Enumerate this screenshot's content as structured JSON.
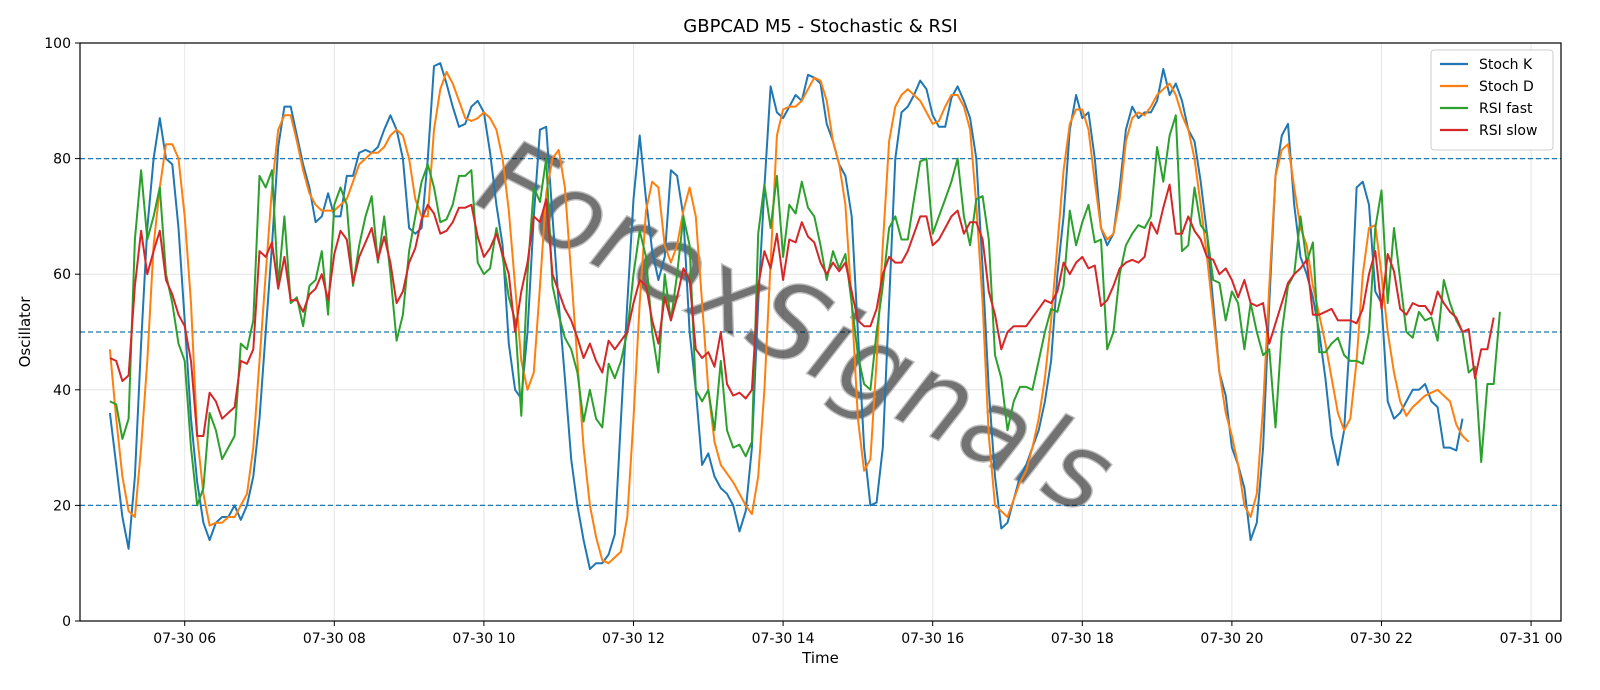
{
  "chart_data": {
    "type": "line",
    "title": "GBPCAD M5 - Stochastic & RSI",
    "xlabel": "Time",
    "ylabel": "Oscillator",
    "ylim": [
      0,
      100
    ],
    "yticks": [
      0,
      20,
      40,
      60,
      80,
      100
    ],
    "xlim": [
      "07-30 04:36",
      "07-31 00:24"
    ],
    "xticks": [
      "07-30 06",
      "07-30 08",
      "07-30 10",
      "07-30 12",
      "07-30 14",
      "07-30 16",
      "07-30 18",
      "07-30 20",
      "07-30 22",
      "07-31 00"
    ],
    "grid": true,
    "legend_position": "top-right",
    "reference_lines": [
      20,
      50,
      80
    ],
    "watermark": "ForexSignals",
    "x_start": "07-30 05:00",
    "x_step_minutes": 5,
    "series": [
      {
        "name": "Stoch K",
        "color": "#1f77b4",
        "values": [
          36,
          27,
          18,
          12.5,
          25,
          48,
          68,
          80,
          87,
          80,
          79,
          68,
          52,
          35,
          24,
          17,
          14,
          17,
          18,
          18,
          20,
          17.5,
          20,
          25,
          35,
          50,
          65,
          82,
          89,
          89,
          84,
          79,
          75,
          69,
          70,
          74,
          70,
          70,
          77,
          77,
          81,
          81.5,
          81,
          82,
          85,
          87.5,
          85,
          80,
          68,
          67,
          68,
          80,
          96,
          96.5,
          93,
          89,
          85.5,
          86,
          89,
          90,
          88,
          81,
          72,
          65,
          48,
          40,
          38.5,
          50,
          70,
          85,
          85.5,
          70,
          55,
          42,
          28,
          20,
          14,
          9,
          10,
          10,
          11.5,
          15,
          35,
          55,
          73,
          84,
          73,
          64,
          59,
          63,
          78,
          77,
          70,
          50,
          40,
          27,
          29,
          25,
          23,
          22,
          20,
          15.5,
          19,
          30,
          55,
          75,
          92.5,
          88,
          87,
          89,
          91,
          90,
          94.5,
          94,
          93,
          86,
          83,
          79,
          77,
          70,
          50,
          30,
          20,
          20.5,
          30,
          55,
          80,
          88,
          89,
          91,
          93.5,
          92,
          87.5,
          85.5,
          85.5,
          90.5,
          92.5,
          90,
          87,
          80,
          61,
          40,
          25,
          16,
          17,
          21,
          25,
          27,
          30,
          33,
          38,
          45,
          60,
          70,
          85,
          91,
          87,
          88,
          80,
          68,
          65,
          67,
          75,
          85,
          89,
          87,
          88,
          88,
          90,
          95.5,
          91,
          93,
          90,
          85,
          83,
          76,
          67,
          55,
          43,
          39,
          30,
          27,
          23,
          14,
          17,
          30,
          55,
          77,
          84,
          86,
          72,
          63,
          60,
          56,
          50,
          42,
          32,
          27,
          33,
          50,
          75,
          76,
          72,
          57,
          55,
          38,
          35,
          36,
          38,
          40,
          40,
          41,
          38,
          37,
          30,
          30,
          29.5,
          35
        ]
      },
      {
        "name": "Stoch D",
        "color": "#ff7f0e",
        "values": [
          47,
          35,
          25,
          19,
          18,
          30,
          45,
          65,
          75,
          82.5,
          82.5,
          80,
          70,
          55,
          32,
          22,
          16.5,
          17,
          17,
          18,
          18,
          20,
          22,
          30,
          45,
          60,
          75,
          85,
          87.5,
          87.5,
          83,
          78,
          74,
          72,
          71,
          71,
          71,
          72,
          73,
          76,
          79,
          80,
          81,
          81,
          82,
          84,
          85,
          84,
          80,
          73,
          70,
          70,
          85,
          92,
          95,
          93,
          90,
          87,
          86.5,
          87,
          88,
          87,
          85,
          80,
          71,
          58,
          45,
          40,
          43,
          58,
          74,
          80,
          81.5,
          75,
          60,
          45,
          30,
          20,
          14.5,
          10.5,
          10,
          11,
          12,
          18,
          35,
          55,
          71,
          76,
          75,
          65,
          62,
          65,
          71,
          75,
          70,
          55,
          40,
          31,
          27,
          25.5,
          24,
          22,
          20,
          18.5,
          25,
          40,
          62,
          84,
          88.5,
          89,
          89,
          90,
          92,
          94,
          93.5,
          90,
          83,
          79,
          72,
          55,
          35,
          26,
          28,
          45,
          65,
          83,
          89,
          91,
          92,
          91,
          90,
          88,
          86,
          86.5,
          89,
          91,
          91,
          89,
          85,
          72,
          55,
          32,
          20,
          19,
          18,
          21,
          24,
          26,
          30,
          35,
          42,
          52,
          65,
          78,
          86,
          88.5,
          88.5,
          85,
          76,
          68,
          66,
          67,
          73,
          83,
          87,
          88,
          87.5,
          89,
          91,
          92,
          93,
          91,
          87.5,
          85,
          80,
          72,
          63,
          53,
          43,
          36,
          32,
          27,
          20,
          18,
          22,
          37,
          58,
          77,
          81.5,
          82.5,
          75,
          68,
          65,
          58,
          53,
          48,
          42,
          36,
          33,
          35,
          45,
          60,
          68,
          68.5,
          60,
          50,
          43,
          38,
          35.5,
          37,
          38,
          39,
          39.5,
          40,
          39,
          38,
          34,
          32,
          31
        ]
      },
      {
        "name": "RSI fast",
        "color": "#2ca02c",
        "values": [
          38,
          37.5,
          31.5,
          35,
          66,
          78,
          66,
          70,
          75,
          60,
          55,
          48,
          45,
          30,
          20,
          23,
          36,
          33,
          28,
          30,
          32,
          48,
          47,
          52,
          77,
          75,
          78,
          58,
          70,
          55,
          56,
          51,
          58,
          59,
          64,
          53,
          72,
          75,
          72,
          58,
          65,
          70,
          73.5,
          62,
          70,
          60,
          48.5,
          53,
          64,
          70,
          76,
          79,
          75,
          69,
          69.5,
          72,
          77,
          77,
          78,
          62,
          60,
          61,
          68,
          63,
          56,
          52,
          35.5,
          60,
          75,
          72.5,
          80,
          58,
          53,
          49,
          47,
          43,
          34.5,
          40,
          35,
          33.5,
          44.5,
          42,
          45,
          50,
          60,
          67.5,
          63,
          50,
          43,
          60,
          52,
          60,
          70,
          65,
          40,
          38,
          40,
          33,
          45,
          33,
          30,
          30.5,
          28.5,
          31,
          67,
          75.5,
          68,
          77,
          63,
          72,
          70.5,
          76,
          71.5,
          70,
          65,
          59,
          64,
          61,
          63.5,
          55,
          46,
          41,
          40,
          50,
          58,
          68,
          70,
          66,
          66,
          73,
          79.5,
          80,
          67,
          70,
          73,
          76,
          80,
          70,
          65,
          73,
          73.5,
          66,
          46,
          42,
          33,
          38,
          40.5,
          40.5,
          40,
          45,
          50,
          54,
          53.5,
          58,
          71,
          65,
          69,
          72,
          65.5,
          66,
          47,
          50,
          60,
          65,
          67,
          68.5,
          68,
          70,
          82,
          76,
          84,
          87.5,
          64,
          65,
          75,
          68.5,
          67,
          59,
          58.5,
          52,
          57,
          55,
          47,
          55,
          50,
          46,
          47,
          33.5,
          50,
          58,
          60,
          70,
          62,
          65.5,
          46.5,
          46.5,
          48,
          49,
          46,
          45,
          45,
          44.5,
          50,
          68,
          74.5,
          55,
          68,
          59,
          50,
          49,
          53.5,
          52,
          52.5,
          48.5,
          59,
          55,
          52,
          50,
          43,
          44,
          27.5,
          41,
          41,
          53.5
        ]
      },
      {
        "name": "RSI slow",
        "color": "#d62728",
        "values": [
          45.5,
          45,
          41.5,
          42.5,
          58,
          67.5,
          60,
          64,
          67.5,
          59,
          56.5,
          53,
          51,
          45,
          32,
          32,
          39.5,
          38,
          35,
          36,
          37,
          45,
          44.5,
          47,
          64,
          63,
          65.5,
          57.5,
          63,
          55.5,
          55.5,
          53.5,
          56.5,
          57.5,
          60,
          55.5,
          63.5,
          67.5,
          66,
          58.5,
          63,
          65.5,
          68,
          62.5,
          66.5,
          62,
          55,
          57,
          62,
          64.5,
          69.5,
          72,
          70.5,
          67,
          67.5,
          69,
          71.5,
          71.5,
          72,
          66.5,
          63,
          64.5,
          67,
          63.5,
          60,
          50,
          57,
          62,
          70,
          69,
          73,
          60,
          57,
          54,
          52,
          49,
          45.5,
          48,
          45,
          43,
          48.5,
          47,
          48.5,
          50,
          55,
          59,
          58,
          52,
          48,
          56,
          52,
          56,
          61,
          59,
          47,
          45.5,
          46.5,
          44,
          50,
          41,
          39,
          39.5,
          38.5,
          40,
          58,
          64,
          61,
          67,
          59,
          66,
          65.5,
          69,
          66.5,
          65.5,
          62,
          60,
          62,
          60.5,
          62,
          57,
          52,
          51,
          51,
          54,
          60,
          63,
          62,
          62,
          64,
          67,
          70,
          70,
          65,
          66,
          68,
          70,
          71,
          67,
          69,
          69,
          66,
          57,
          53,
          47,
          50,
          51,
          51,
          51,
          52.5,
          54,
          55.5,
          55,
          57,
          62,
          60,
          62,
          63,
          61,
          61.5,
          54.5,
          55.5,
          58,
          61,
          62,
          62.5,
          62,
          63,
          69,
          67,
          71.5,
          75.5,
          67,
          67,
          70,
          67.5,
          66,
          63,
          62.5,
          60,
          61,
          59,
          56,
          59,
          55,
          54.5,
          55,
          48,
          51.5,
          55,
          58.5,
          60,
          61,
          62.5,
          53,
          53,
          53.5,
          54,
          52,
          52,
          52,
          51.5,
          54,
          60,
          64,
          54,
          63.5,
          60.5,
          54,
          53,
          55,
          54.5,
          54.5,
          53,
          57,
          55,
          53.5,
          52.5,
          50,
          50.5,
          42,
          47,
          47,
          52.5
        ]
      }
    ]
  }
}
